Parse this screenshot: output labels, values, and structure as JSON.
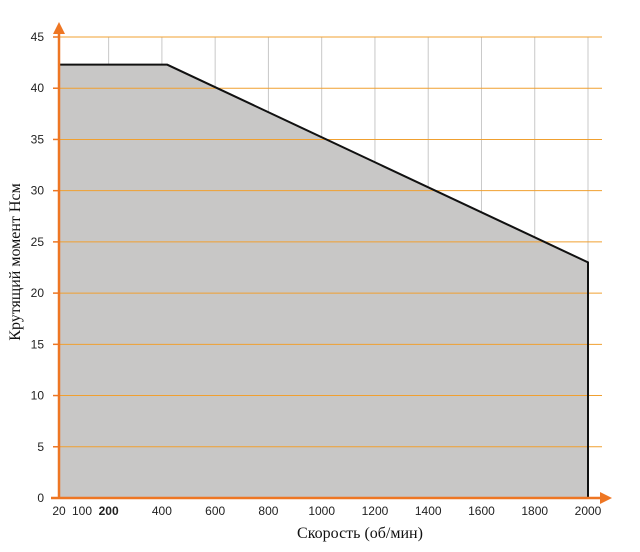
{
  "chart_data": {
    "type": "area",
    "title": "",
    "xlabel": "Скорость (об/мин)",
    "ylabel": "Крутящий момент Нсм",
    "xlim": [
      20,
      2000
    ],
    "ylim": [
      0,
      45
    ],
    "x_ticks": [
      {
        "value": 20,
        "label": "20",
        "bold": false
      },
      {
        "value": 100,
        "label": "100",
        "bold": false
      },
      {
        "value": 200,
        "label": "200",
        "bold": true
      },
      {
        "value": 400,
        "label": "400",
        "bold": false
      },
      {
        "value": 600,
        "label": "600",
        "bold": false
      },
      {
        "value": 800,
        "label": "800",
        "bold": false
      },
      {
        "value": 1000,
        "label": "1000",
        "bold": false
      },
      {
        "value": 1200,
        "label": "1200",
        "bold": false
      },
      {
        "value": 1400,
        "label": "1400",
        "bold": false
      },
      {
        "value": 1600,
        "label": "1600",
        "bold": false
      },
      {
        "value": 1800,
        "label": "1800",
        "bold": false
      },
      {
        "value": 2000,
        "label": "2000",
        "bold": false
      }
    ],
    "x_gridlines": [
      200,
      400,
      600,
      800,
      1000,
      1200,
      1400,
      1600,
      1800,
      2000
    ],
    "y_ticks": [
      0,
      5,
      10,
      15,
      20,
      25,
      30,
      35,
      40,
      45
    ],
    "grid": true,
    "series": [
      {
        "x": [
          20,
          200,
          420,
          2000,
          2000
        ],
        "y": [
          42.3,
          42.3,
          42.3,
          23,
          0
        ]
      }
    ],
    "colors": {
      "area_fill": "#c8c7c6",
      "curve": "#111111",
      "h_grid": "#f0a030",
      "v_grid": "#c8c8c8",
      "axis": "#ee7623"
    }
  }
}
